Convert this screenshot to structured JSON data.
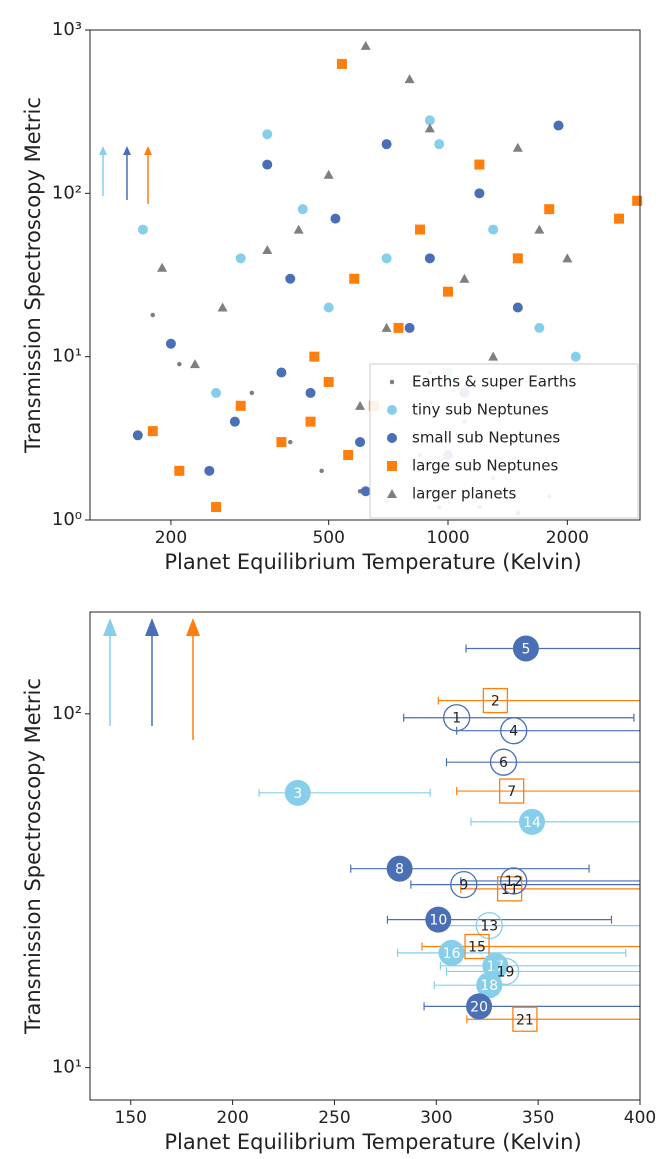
{
  "chart_data": [
    {
      "type": "scatter",
      "xlabel": "Planet Equilibrium Temperature (Kelvin)",
      "ylabel": "Transmission Spectroscopy Metric",
      "xscale": "log",
      "yscale": "log",
      "xlim": [
        125,
        3050
      ],
      "ylim": [
        1,
        1000
      ],
      "xticks": [
        200,
        500,
        1000,
        2000
      ],
      "yticks": [
        {
          "value": 1,
          "label": "10⁰"
        },
        {
          "value": 10,
          "label": "10¹"
        },
        {
          "value": 100,
          "label": "10²"
        },
        {
          "value": 1000,
          "label": "10³"
        }
      ],
      "legend": "lower right",
      "series": [
        {
          "name": "Earths & super Earths",
          "color": "#7f7f7f",
          "marker": "dot",
          "x": [
            180,
            210,
            320,
            400,
            480,
            600,
            700,
            850,
            950,
            1100,
            1300,
            1500,
            1800,
            900,
            1200
          ],
          "values": [
            18,
            9,
            6,
            3,
            2,
            1.5,
            1.3,
            2.5,
            1.2,
            4,
            1.8,
            1.1,
            1.4,
            8,
            1.2
          ]
        },
        {
          "name": "tiny sub Neptunes",
          "color": "#87ceeb",
          "marker": "circle",
          "x": [
            170,
            260,
            300,
            350,
            430,
            500,
            700,
            900,
            1000,
            1300,
            1700,
            2100,
            950,
            600
          ],
          "values": [
            60,
            6,
            40,
            230,
            80,
            20,
            40,
            280,
            8,
            60,
            15,
            10,
            200,
            3
          ]
        },
        {
          "name": "small sub Neptunes",
          "color": "#4a6fb5",
          "marker": "circle",
          "x": [
            165,
            200,
            250,
            290,
            350,
            400,
            450,
            520,
            600,
            700,
            800,
            900,
            1000,
            1200,
            1500,
            1900,
            380,
            620,
            1100
          ],
          "values": [
            3.3,
            12,
            2,
            4,
            150,
            30,
            6,
            70,
            3,
            200,
            15,
            40,
            2.5,
            100,
            20,
            260,
            8,
            1.5,
            6
          ]
        },
        {
          "name": "large sub Neptunes",
          "color": "#ff7f0e",
          "marker": "square",
          "x": [
            180,
            210,
            260,
            300,
            380,
            450,
            500,
            540,
            580,
            650,
            750,
            850,
            1000,
            1200,
            1500,
            1800,
            2700,
            3000,
            560,
            460
          ],
          "values": [
            3.5,
            2,
            1.2,
            5,
            3,
            4,
            7,
            620,
            30,
            5,
            15,
            60,
            25,
            150,
            40,
            80,
            70,
            90,
            2.5,
            10
          ]
        },
        {
          "name": "larger planets",
          "color": "#7f7f7f",
          "marker": "triangle",
          "x": [
            190,
            230,
            270,
            350,
            420,
            500,
            620,
            700,
            800,
            900,
            1100,
            1300,
            1500,
            1700,
            2000,
            600
          ],
          "values": [
            35,
            9,
            20,
            45,
            60,
            130,
            800,
            15,
            500,
            250,
            30,
            10,
            190,
            60,
            40,
            5
          ]
        }
      ]
    },
    {
      "type": "errorbar",
      "xlabel": "Planet Equilibrium Temperature (Kelvin)",
      "ylabel": "Transmission Spectroscopy Metric",
      "xscale": "linear",
      "yscale": "log",
      "xlim": [
        130,
        400
      ],
      "ylim": [
        8.1,
        194
      ],
      "xticks": [
        150,
        200,
        250,
        300,
        350,
        400
      ],
      "yticks": [
        {
          "value": 10,
          "label": "10¹"
        },
        {
          "value": 100,
          "label": "10²"
        }
      ],
      "points": [
        {
          "label": "1",
          "x": 310,
          "y": 97.5,
          "xerr": [
            284,
            397
          ],
          "color": "#4a6fb5",
          "marker": "circle",
          "filled": false
        },
        {
          "label": "2",
          "x": 329,
          "y": 109,
          "xerr": [
            301,
            420
          ],
          "color": "#ff7f0e",
          "marker": "square",
          "filled": false
        },
        {
          "label": "3",
          "x": 232,
          "y": 59.8,
          "xerr": [
            213,
            297
          ],
          "color": "#87ceeb",
          "marker": "circle",
          "filled": true
        },
        {
          "label": "4",
          "x": 338,
          "y": 89.6,
          "xerr": [
            310,
            420
          ],
          "color": "#4a6fb5",
          "marker": "circle",
          "filled": false
        },
        {
          "label": "5",
          "x": 344,
          "y": 153,
          "xerr": [
            314.6,
            420
          ],
          "color": "#4a6fb5",
          "marker": "circle",
          "filled": true
        },
        {
          "label": "6",
          "x": 333,
          "y": 73,
          "xerr": [
            305,
            420
          ],
          "color": "#4a6fb5",
          "marker": "circle",
          "filled": false
        },
        {
          "label": "7",
          "x": 337,
          "y": 60.5,
          "xerr": [
            310,
            420
          ],
          "color": "#ff7f0e",
          "marker": "square",
          "filled": false
        },
        {
          "label": "8",
          "x": 282,
          "y": 36.5,
          "xerr": [
            258,
            375
          ],
          "color": "#4a6fb5",
          "marker": "circle",
          "filled": true
        },
        {
          "label": "9",
          "x": 313.5,
          "y": 32.9,
          "xerr": [
            287.5,
            420
          ],
          "color": "#4a6fb5",
          "marker": "circle",
          "filled": false
        },
        {
          "label": "10",
          "x": 301,
          "y": 26.2,
          "xerr": [
            276,
            386
          ],
          "color": "#4a6fb5",
          "marker": "circle",
          "filled": true
        },
        {
          "label": "11",
          "x": 336,
          "y": 32,
          "xerr": [
            312,
            420
          ],
          "color": "#ff7f0e",
          "marker": "square",
          "filled": false
        },
        {
          "label": "12",
          "x": 338,
          "y": 33.7,
          "xerr": [
            312,
            420
          ],
          "color": "#4a6fb5",
          "marker": "circle",
          "filled": false
        },
        {
          "label": "13",
          "x": 326,
          "y": 25.2,
          "xerr": [
            303,
            420
          ],
          "color": "#87ceeb",
          "marker": "circle",
          "filled": false
        },
        {
          "label": "14",
          "x": 347,
          "y": 49.5,
          "xerr": [
            317,
            420
          ],
          "color": "#87ceeb",
          "marker": "circle",
          "filled": true
        },
        {
          "label": "15",
          "x": 320,
          "y": 22,
          "xerr": [
            293,
            420
          ],
          "color": "#ff7f0e",
          "marker": "square",
          "filled": false
        },
        {
          "label": "16",
          "x": 307.5,
          "y": 21.1,
          "xerr": [
            281,
            393
          ],
          "color": "#87ceeb",
          "marker": "circle",
          "filled": true
        },
        {
          "label": "17",
          "x": 329,
          "y": 19.4,
          "xerr": [
            302,
            420
          ],
          "color": "#87ceeb",
          "marker": "circle",
          "filled": true
        },
        {
          "label": "18",
          "x": 326,
          "y": 17.1,
          "xerr": [
            299,
            420
          ],
          "color": "#87ceeb",
          "marker": "circle",
          "filled": true
        },
        {
          "label": "19",
          "x": 334,
          "y": 18.7,
          "xerr": [
            305,
            420
          ],
          "color": "#87ceeb",
          "marker": "circle",
          "filled": false
        },
        {
          "label": "20",
          "x": 321,
          "y": 14.9,
          "xerr": [
            294,
            420
          ],
          "color": "#4a6fb5",
          "marker": "circle",
          "filled": true
        },
        {
          "label": "21",
          "x": 343.5,
          "y": 13.7,
          "xerr": [
            315,
            420
          ],
          "color": "#ff7f0e",
          "marker": "square",
          "filled": false
        }
      ]
    }
  ]
}
